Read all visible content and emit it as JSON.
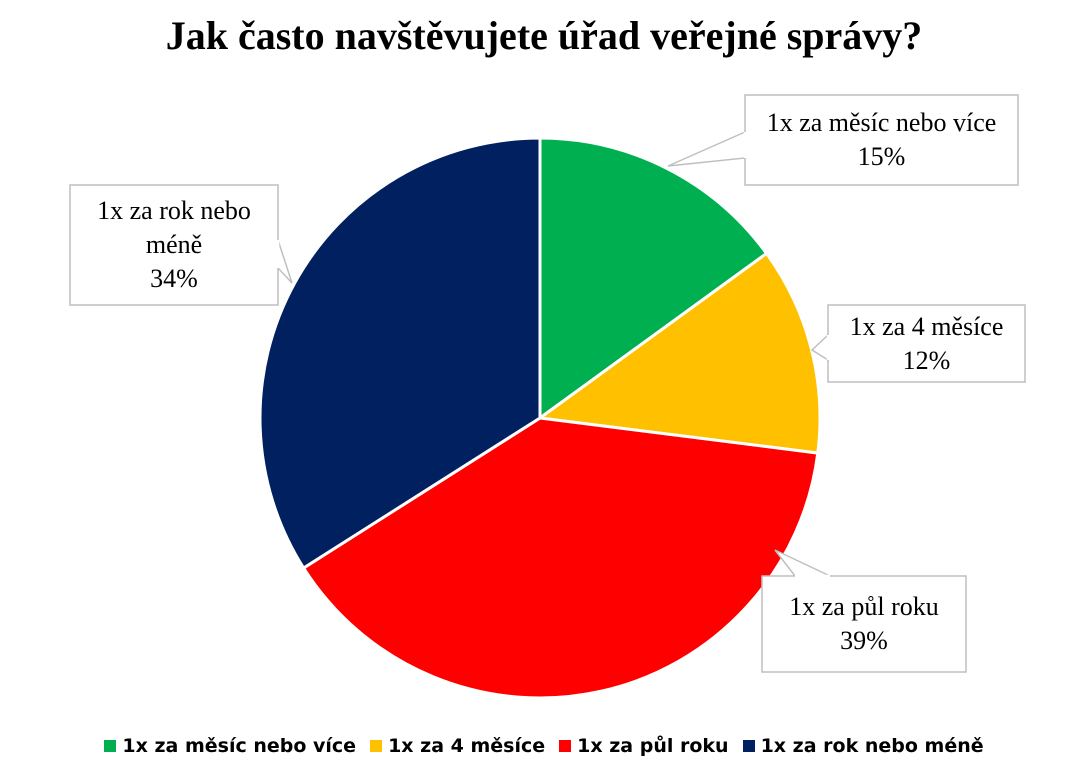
{
  "chart_data": {
    "type": "pie",
    "title": "Jak často navštěvujete úřad veřejné správy?",
    "categories": [
      "1x za měsíc nebo více",
      "1x za 4 měsíce",
      "1x za půl roku",
      "1x za rok nebo méně"
    ],
    "values": [
      15,
      12,
      39,
      34
    ],
    "value_labels": [
      "15%",
      "12%",
      "39%",
      "34%"
    ],
    "colors": [
      "#00b050",
      "#ffc000",
      "#ff0000",
      "#002060"
    ],
    "legend": "bottom"
  }
}
